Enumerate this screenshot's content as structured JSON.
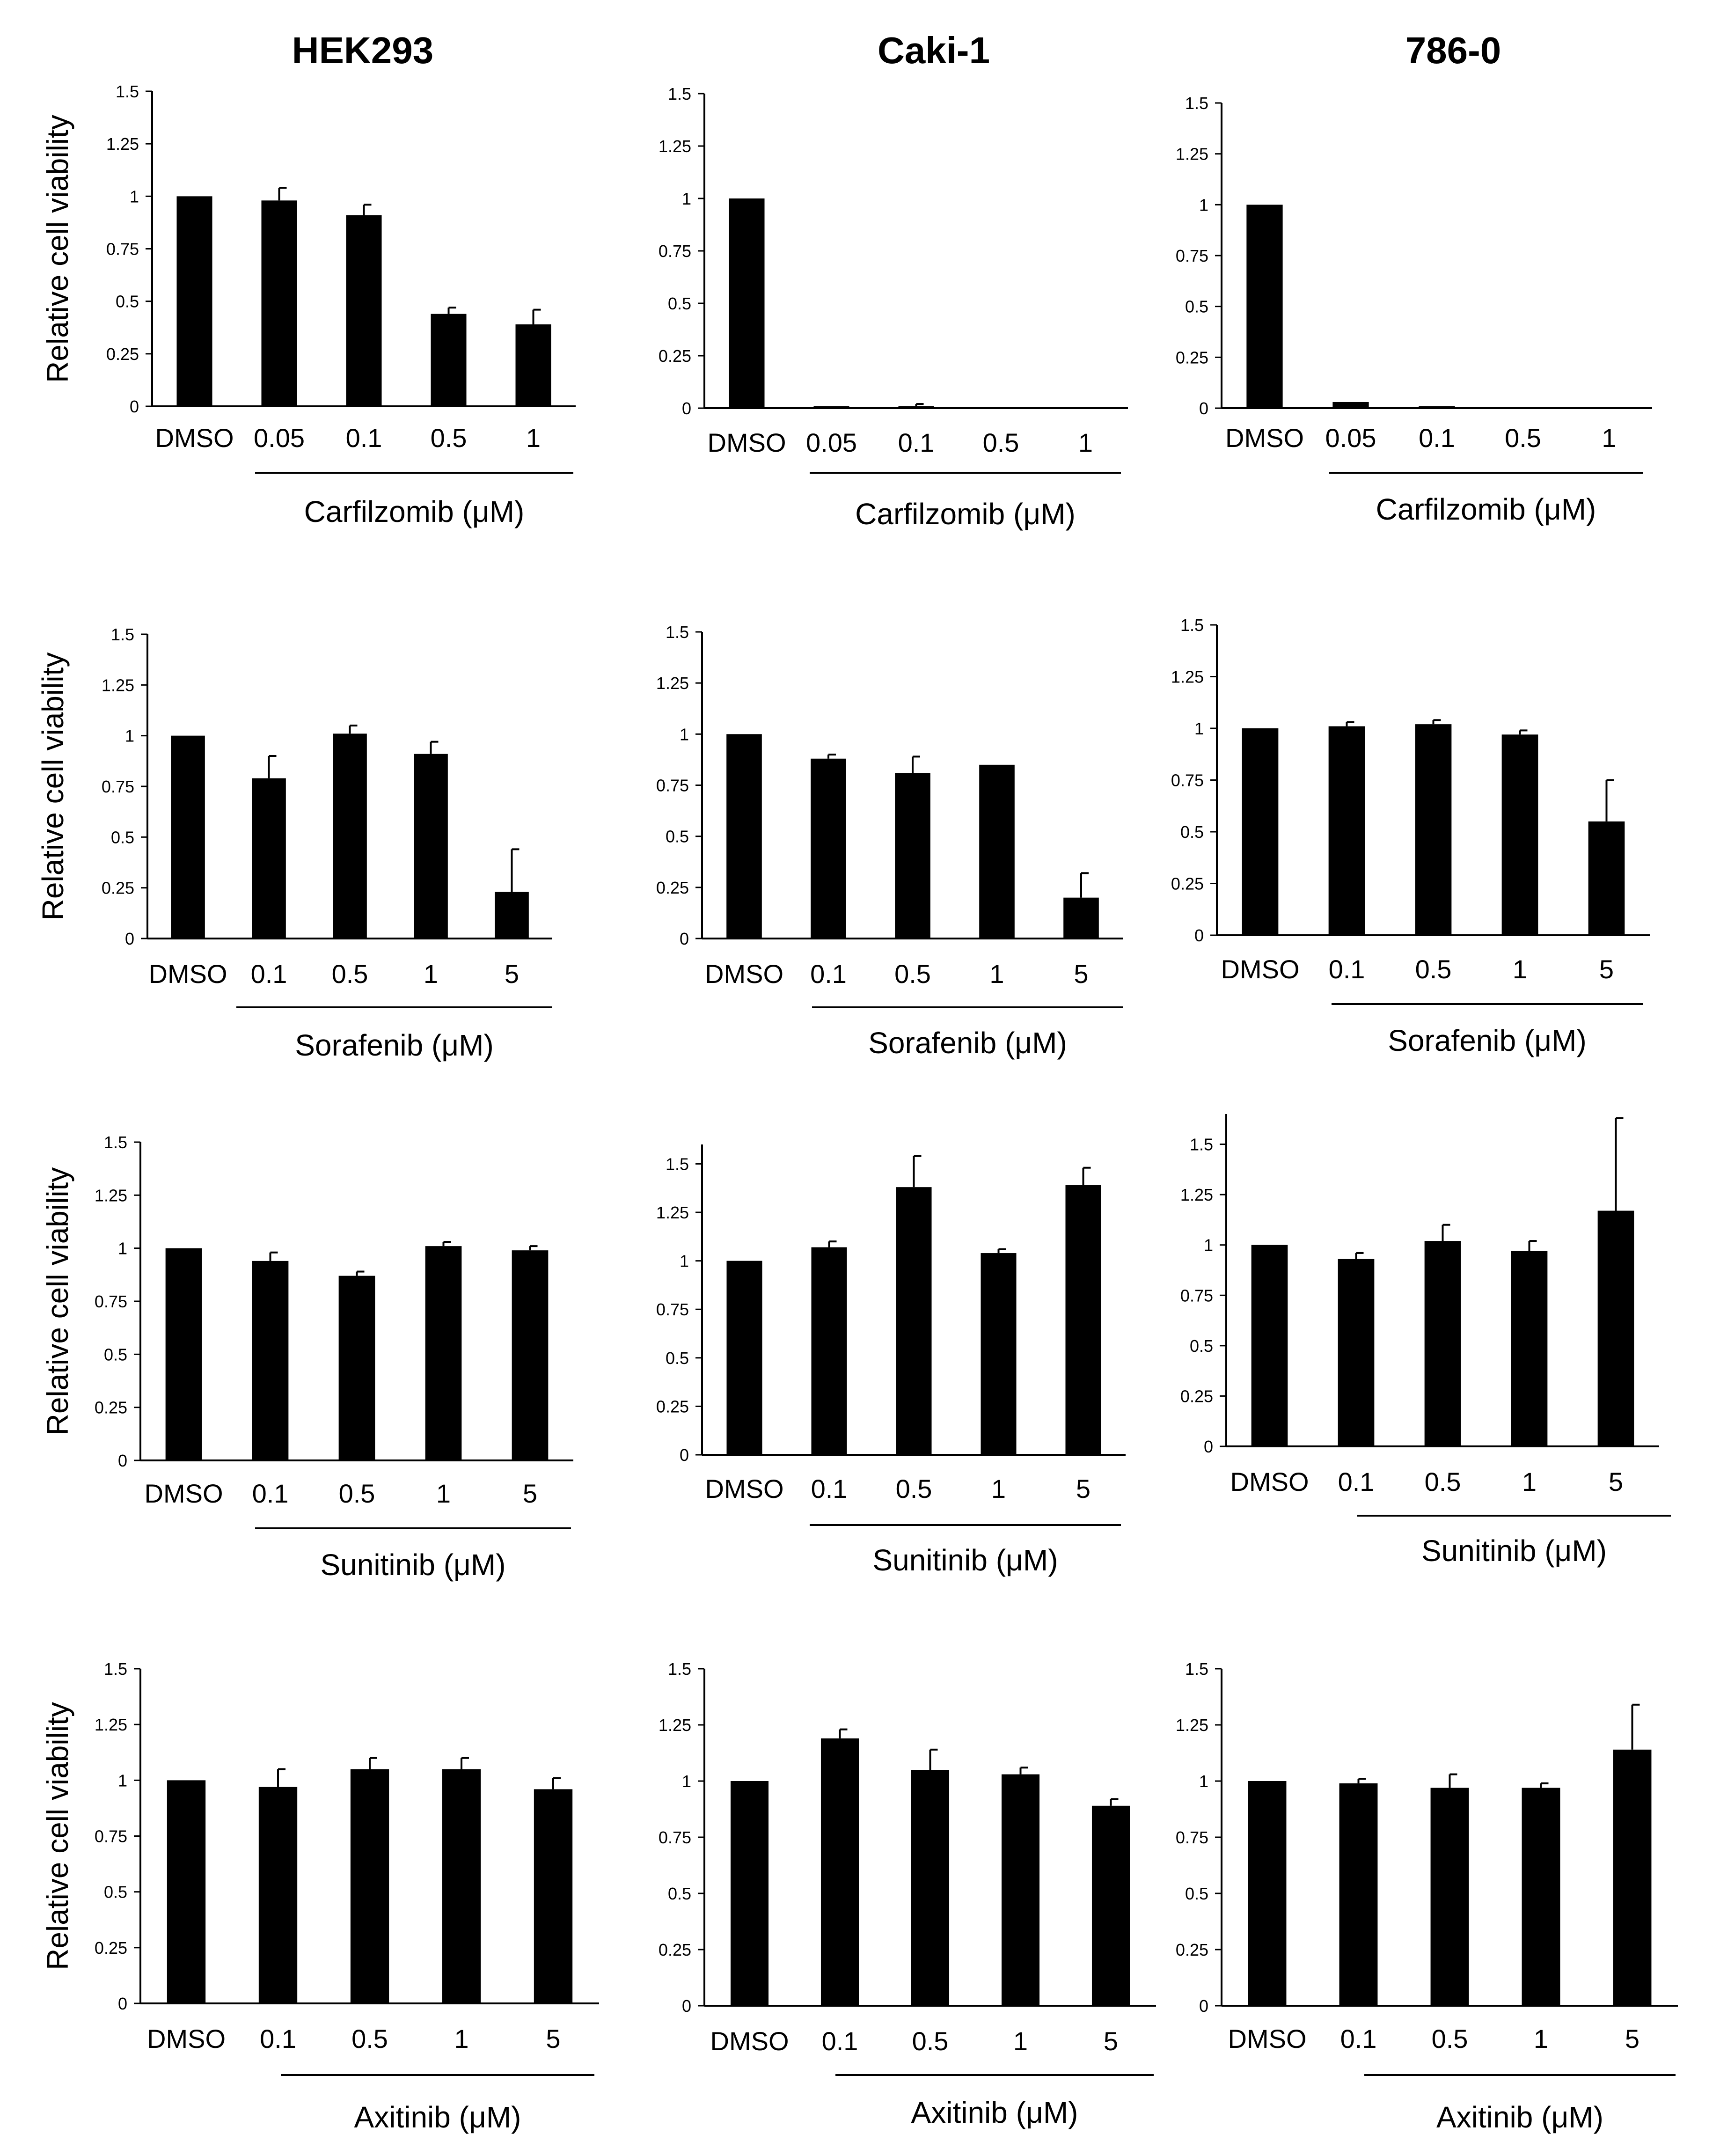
{
  "figure": {
    "column_titles": [
      "HEK293",
      "Caki-1",
      "786-0"
    ],
    "y_axis_label": "Relative cell viability"
  },
  "colors": {
    "bar": "#000000",
    "axis": "#000000",
    "background": "#ffffff"
  },
  "chart_data": [
    {
      "type": "bar",
      "panel": "HEK293-Carfilzomib",
      "title": "HEK293",
      "xlabel": "Carfilzomib (μM)",
      "ylabel": "Relative cell viability",
      "categories": [
        "DMSO",
        "0.05",
        "0.1",
        "0.5",
        "1"
      ],
      "values": [
        1.0,
        0.98,
        0.91,
        0.44,
        0.39
      ],
      "errors": [
        0.0,
        0.06,
        0.05,
        0.03,
        0.07
      ],
      "ylim": [
        0,
        1.5
      ],
      "yticks": [
        0,
        0.25,
        0.5,
        0.75,
        1,
        1.25,
        1.5
      ]
    },
    {
      "type": "bar",
      "panel": "Caki-1-Carfilzomib",
      "title": "Caki-1",
      "xlabel": "Carfilzomib (μM)",
      "ylabel": "",
      "categories": [
        "DMSO",
        "0.05",
        "0.1",
        "0.5",
        "1"
      ],
      "values": [
        1.0,
        0.01,
        0.01,
        0.0,
        0.0
      ],
      "errors": [
        0.0,
        0.0,
        0.01,
        0.0,
        0.0
      ],
      "ylim": [
        0,
        1.5
      ],
      "yticks": [
        0,
        0.25,
        0.5,
        0.75,
        1,
        1.25,
        1.5
      ]
    },
    {
      "type": "bar",
      "panel": "786-0-Carfilzomib",
      "title": "786-0",
      "xlabel": "Carfilzomib (μM)",
      "ylabel": "",
      "categories": [
        "DMSO",
        "0.05",
        "0.1",
        "0.5",
        "1"
      ],
      "values": [
        1.0,
        0.03,
        0.01,
        0.0,
        0.0
      ],
      "errors": [
        0.0,
        0.0,
        0.0,
        0.0,
        0.0
      ],
      "ylim": [
        0,
        1.5
      ],
      "yticks": [
        0,
        0.25,
        0.5,
        0.75,
        1,
        1.25,
        1.5
      ]
    },
    {
      "type": "bar",
      "panel": "HEK293-Sorafenib",
      "xlabel": "Sorafenib (μM)",
      "ylabel": "Relative cell viability",
      "categories": [
        "DMSO",
        "0.1",
        "0.5",
        "1",
        "5"
      ],
      "values": [
        1.0,
        0.79,
        1.01,
        0.91,
        0.23
      ],
      "errors": [
        0.0,
        0.11,
        0.04,
        0.06,
        0.21
      ],
      "ylim": [
        0,
        1.5
      ],
      "yticks": [
        0,
        0.25,
        0.5,
        0.75,
        1,
        1.25,
        1.5
      ]
    },
    {
      "type": "bar",
      "panel": "Caki-1-Sorafenib",
      "xlabel": "Sorafenib (μM)",
      "ylabel": "",
      "categories": [
        "DMSO",
        "0.1",
        "0.5",
        "1",
        "5"
      ],
      "values": [
        1.0,
        0.88,
        0.81,
        0.85,
        0.2
      ],
      "errors": [
        0.0,
        0.02,
        0.08,
        0.0,
        0.12
      ],
      "ylim": [
        0,
        1.5
      ],
      "yticks": [
        0,
        0.25,
        0.5,
        0.75,
        1,
        1.25,
        1.5
      ]
    },
    {
      "type": "bar",
      "panel": "786-0-Sorafenib",
      "xlabel": "Sorafenib (μM)",
      "ylabel": "",
      "categories": [
        "DMSO",
        "0.1",
        "0.5",
        "1",
        "5"
      ],
      "values": [
        1.0,
        1.01,
        1.02,
        0.97,
        0.55
      ],
      "errors": [
        0.0,
        0.02,
        0.02,
        0.02,
        0.2
      ],
      "ylim": [
        0,
        1.5
      ],
      "yticks": [
        0,
        0.25,
        0.5,
        0.75,
        1,
        1.25,
        1.5
      ]
    },
    {
      "type": "bar",
      "panel": "HEK293-Sunitinib",
      "xlabel": "Sunitinib (μM)",
      "ylabel": "Relative cell viability",
      "categories": [
        "DMSO",
        "0.1",
        "0.5",
        "1",
        "5"
      ],
      "values": [
        1.0,
        0.94,
        0.87,
        1.01,
        0.99
      ],
      "errors": [
        0.0,
        0.04,
        0.02,
        0.02,
        0.02
      ],
      "ylim": [
        0,
        1.5
      ],
      "yticks": [
        0,
        0.25,
        0.5,
        0.75,
        1,
        1.25,
        1.5
      ]
    },
    {
      "type": "bar",
      "panel": "Caki-1-Sunitinib",
      "xlabel": "Sunitinib (μM)",
      "ylabel": "",
      "categories": [
        "DMSO",
        "0.1",
        "0.5",
        "1",
        "5"
      ],
      "values": [
        1.0,
        1.07,
        1.38,
        1.04,
        1.39
      ],
      "errors": [
        0.0,
        0.03,
        0.16,
        0.02,
        0.09
      ],
      "ylim": [
        0,
        1.6
      ],
      "yticks": [
        0,
        0.25,
        0.5,
        0.75,
        1,
        1.25,
        1.5
      ]
    },
    {
      "type": "bar",
      "panel": "786-0-Sunitinib",
      "xlabel": "Sunitinib (μM)",
      "ylabel": "",
      "categories": [
        "DMSO",
        "0.1",
        "0.5",
        "1",
        "5"
      ],
      "values": [
        1.0,
        0.93,
        1.02,
        0.97,
        1.17
      ],
      "errors": [
        0.0,
        0.03,
        0.08,
        0.05,
        0.46
      ],
      "ylim": [
        0,
        1.65
      ],
      "yticks": [
        0,
        0.25,
        0.5,
        0.75,
        1,
        1.25,
        1.5
      ]
    },
    {
      "type": "bar",
      "panel": "HEK293-Axitinib",
      "xlabel": "Axitinib (μM)",
      "ylabel": "Relative cell viability",
      "categories": [
        "DMSO",
        "0.1",
        "0.5",
        "1",
        "5"
      ],
      "values": [
        1.0,
        0.97,
        1.05,
        1.05,
        0.96
      ],
      "errors": [
        0.0,
        0.08,
        0.05,
        0.05,
        0.05
      ],
      "ylim": [
        0,
        1.5
      ],
      "yticks": [
        0,
        0.25,
        0.5,
        0.75,
        1,
        1.25,
        1.5
      ]
    },
    {
      "type": "bar",
      "panel": "Caki-1-Axitinib",
      "xlabel": "Axitinib (μM)",
      "ylabel": "",
      "categories": [
        "DMSO",
        "0.1",
        "0.5",
        "1",
        "5"
      ],
      "values": [
        1.0,
        1.19,
        1.05,
        1.03,
        0.89
      ],
      "errors": [
        0.0,
        0.04,
        0.09,
        0.03,
        0.03
      ],
      "ylim": [
        0,
        1.5
      ],
      "yticks": [
        0,
        0.25,
        0.5,
        0.75,
        1,
        1.25,
        1.5
      ]
    },
    {
      "type": "bar",
      "panel": "786-0-Axitinib",
      "xlabel": "Axitinib (μM)",
      "ylabel": "",
      "categories": [
        "DMSO",
        "0.1",
        "0.5",
        "1",
        "5"
      ],
      "values": [
        1.0,
        0.99,
        0.97,
        0.97,
        1.14
      ],
      "errors": [
        0.0,
        0.02,
        0.06,
        0.02,
        0.2
      ],
      "ylim": [
        0,
        1.5
      ],
      "yticks": [
        0,
        0.25,
        0.5,
        0.75,
        1,
        1.25,
        1.5
      ]
    }
  ]
}
